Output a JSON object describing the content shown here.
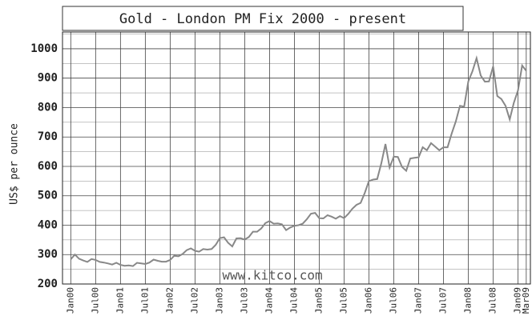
{
  "chart_data": {
    "type": "line",
    "title": "Gold - London PM Fix 2000 - present",
    "y_label": "US$ per ounce",
    "watermark": "www.kitco.com",
    "color": "#888888",
    "grid": true,
    "ylim": [
      200,
      1057
    ],
    "yticks": [
      200,
      300,
      400,
      500,
      600,
      700,
      800,
      900,
      1000
    ],
    "minor_yticks": [
      250,
      350,
      450,
      550,
      650,
      750,
      850,
      950,
      1050
    ],
    "xlim": [
      "1999-11",
      "2009-04"
    ],
    "xticks": [
      {
        "value": "2000-01",
        "label": "Jan00"
      },
      {
        "value": "2000-07",
        "label": "Jul00"
      },
      {
        "value": "2001-01",
        "label": "Jan01"
      },
      {
        "value": "2001-07",
        "label": "Jul01"
      },
      {
        "value": "2002-01",
        "label": "Jan02"
      },
      {
        "value": "2002-07",
        "label": "Jul02"
      },
      {
        "value": "2003-01",
        "label": "Jan03"
      },
      {
        "value": "2003-07",
        "label": "Jul03"
      },
      {
        "value": "2004-01",
        "label": "Jan04"
      },
      {
        "value": "2004-07",
        "label": "Jul04"
      },
      {
        "value": "2005-01",
        "label": "Jan05"
      },
      {
        "value": "2005-07",
        "label": "Jul05"
      },
      {
        "value": "2006-01",
        "label": "Jan06"
      },
      {
        "value": "2006-07",
        "label": "Jul06"
      },
      {
        "value": "2007-01",
        "label": "Jan07"
      },
      {
        "value": "2007-07",
        "label": "Jul07"
      },
      {
        "value": "2008-01",
        "label": "Jan08"
      },
      {
        "value": "2008-07",
        "label": "Jul08"
      },
      {
        "value": "2009-01",
        "label": "Jan09"
      },
      {
        "value": "2009-03",
        "label": "Mar09"
      }
    ],
    "x": [
      "2000-01",
      "2000-02",
      "2000-03",
      "2000-04",
      "2000-05",
      "2000-06",
      "2000-07",
      "2000-08",
      "2000-09",
      "2000-10",
      "2000-11",
      "2000-12",
      "2001-01",
      "2001-02",
      "2001-03",
      "2001-04",
      "2001-05",
      "2001-06",
      "2001-07",
      "2001-08",
      "2001-09",
      "2001-10",
      "2001-11",
      "2001-12",
      "2002-01",
      "2002-02",
      "2002-03",
      "2002-04",
      "2002-05",
      "2002-06",
      "2002-07",
      "2002-08",
      "2002-09",
      "2002-10",
      "2002-11",
      "2002-12",
      "2003-01",
      "2003-02",
      "2003-03",
      "2003-04",
      "2003-05",
      "2003-06",
      "2003-07",
      "2003-08",
      "2003-09",
      "2003-10",
      "2003-11",
      "2003-12",
      "2004-01",
      "2004-02",
      "2004-03",
      "2004-04",
      "2004-05",
      "2004-06",
      "2004-07",
      "2004-08",
      "2004-09",
      "2004-10",
      "2004-11",
      "2004-12",
      "2005-01",
      "2005-02",
      "2005-03",
      "2005-04",
      "2005-05",
      "2005-06",
      "2005-07",
      "2005-08",
      "2005-09",
      "2005-10",
      "2005-11",
      "2005-12",
      "2006-01",
      "2006-02",
      "2006-03",
      "2006-04",
      "2006-05",
      "2006-06",
      "2006-07",
      "2006-08",
      "2006-09",
      "2006-10",
      "2006-11",
      "2006-12",
      "2007-01",
      "2007-02",
      "2007-03",
      "2007-04",
      "2007-05",
      "2007-06",
      "2007-07",
      "2007-08",
      "2007-09",
      "2007-10",
      "2007-11",
      "2007-12",
      "2008-01",
      "2008-02",
      "2008-03",
      "2008-04",
      "2008-05",
      "2008-06",
      "2008-07",
      "2008-08",
      "2008-09",
      "2008-10",
      "2008-11",
      "2008-12",
      "2009-01",
      "2009-02",
      "2009-03"
    ],
    "values": [
      284,
      300,
      286,
      280,
      275,
      285,
      282,
      275,
      273,
      270,
      266,
      272,
      265,
      262,
      263,
      261,
      272,
      270,
      268,
      273,
      283,
      279,
      276,
      276,
      282,
      296,
      294,
      302,
      315,
      321,
      313,
      310,
      319,
      317,
      319,
      333,
      356,
      359,
      340,
      328,
      355,
      356,
      351,
      360,
      378,
      378,
      389,
      407,
      414,
      405,
      406,
      403,
      383,
      392,
      398,
      400,
      405,
      420,
      439,
      442,
      424,
      423,
      434,
      429,
      422,
      431,
      424,
      438,
      456,
      469,
      476,
      510,
      550,
      555,
      557,
      610,
      676,
      596,
      633,
      632,
      598,
      585,
      627,
      629,
      631,
      665,
      655,
      679,
      667,
      655,
      665,
      665,
      712,
      754,
      806,
      803,
      889,
      923,
      968,
      909,
      888,
      889,
      940,
      839,
      829,
      806,
      760,
      816,
      858,
      943,
      925
    ]
  }
}
